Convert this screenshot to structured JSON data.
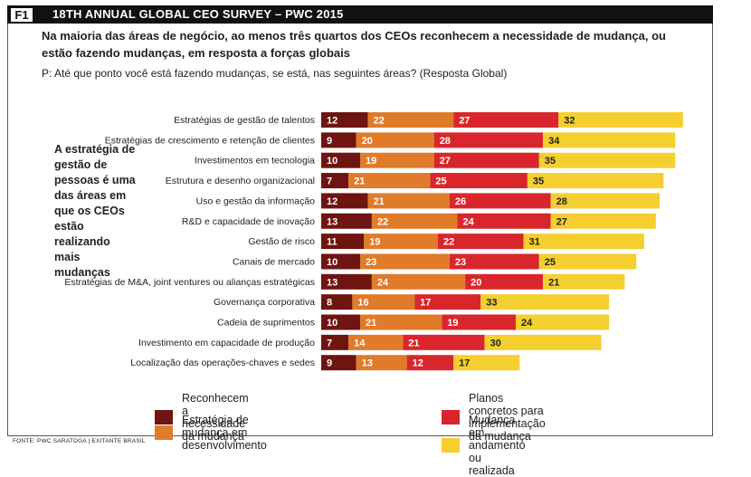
{
  "figure": {
    "tag": "F1",
    "title": "18TH ANNUAL GLOBAL CEO SURVEY – PWC 2015",
    "headline": "Na maioria das áreas de negócio, ao menos três quartos dos CEOs reconhecem a necessidade de mudança, ou estão fazendo mudanças, em resposta a forças globais",
    "question": "P: Até que ponto você está fazendo mudanças, se está, nas seguintes áreas? (Resposta Global)",
    "side_note": "A estratégia de gestão de pessoas é uma das áreas em que os CEOs estão realizando mais mudanças",
    "source": "FONTE: PWC SARATOGA | EXITANTE BRASIL"
  },
  "colors": {
    "reconhecem": "#6e1411",
    "estrategia": "#e07b2a",
    "planos": "#d9262c",
    "andamento": "#f5cf2f"
  },
  "chart_data": {
    "type": "bar",
    "orientation": "horizontal",
    "stacked": true,
    "categories": [
      "Estratégias de gestão de talentos",
      "Estratégias de  crescimento e retenção de clientes",
      "Investimentos em tecnologia",
      "Estrutura e desenho organizacional",
      "Uso e gestão da informação",
      "R&D e capacidade de inovação",
      "Gestão de risco",
      "Canais de mercado",
      "Estratégias de M&A, joint ventures ou alianças estratégicas",
      "Governança corporativa",
      "Cadeia de suprimentos",
      "Investimento em capacidade de produção",
      "Localização das operações-chaves e sedes"
    ],
    "series": [
      {
        "name": "Reconhecem a necessidade da mudança",
        "key": "reconhecem",
        "values": [
          12,
          9,
          10,
          7,
          12,
          13,
          11,
          10,
          13,
          8,
          10,
          7,
          9
        ]
      },
      {
        "name": "Estratégia de mudança em desenvolvimento",
        "key": "estrategia",
        "values": [
          22,
          20,
          19,
          21,
          21,
          22,
          19,
          23,
          24,
          16,
          21,
          14,
          13
        ]
      },
      {
        "name": "Planos concretos para implementação da mudança",
        "key": "planos",
        "values": [
          27,
          28,
          27,
          25,
          26,
          24,
          22,
          23,
          20,
          17,
          19,
          21,
          12
        ]
      },
      {
        "name": "Mudança em andamento ou realizada",
        "key": "andamento",
        "values": [
          32,
          34,
          35,
          35,
          28,
          27,
          31,
          25,
          21,
          33,
          24,
          30,
          17
        ]
      }
    ],
    "legend_order": [
      "reconhecem",
      "planos",
      "estrategia",
      "andamento"
    ],
    "legend_position": "bottom",
    "grid": false
  }
}
